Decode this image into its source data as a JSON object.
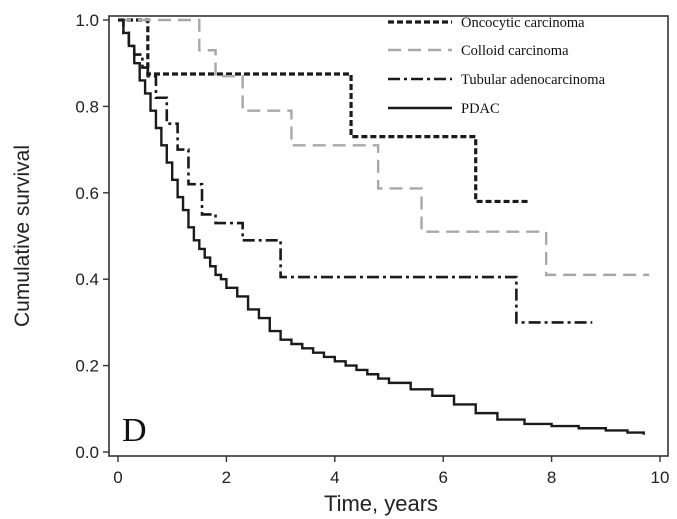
{
  "chart_data": {
    "type": "line",
    "subtype": "kaplan-meier step curves",
    "panel_label": "D",
    "xlabel": "Time, years",
    "ylabel": "Cumulative survival",
    "xlim": [
      0,
      10
    ],
    "ylim": [
      0,
      1.0
    ],
    "x_ticks": [
      "0",
      "2",
      "4",
      "6",
      "8",
      "10"
    ],
    "y_ticks": [
      "0.0",
      "0.2",
      "0.4",
      "0.6",
      "0.8",
      "1.0"
    ],
    "grid": false,
    "legend_position": "top-right",
    "series": [
      {
        "name": "Oncocytic carcinoma",
        "color": "#1a1a1a",
        "dash": "short-dash",
        "x": [
          0,
          0.55,
          4.3,
          6.6,
          7.6
        ],
        "y": [
          1.0,
          0.875,
          0.73,
          0.58,
          0.58
        ]
      },
      {
        "name": "Colloid carcinoma",
        "color": "#a8a8a8",
        "dash": "long-dash",
        "x": [
          0,
          1.5,
          1.8,
          2.3,
          3.2,
          4.8,
          5.6,
          7.9,
          9.8
        ],
        "y": [
          1.0,
          0.93,
          0.87,
          0.79,
          0.71,
          0.61,
          0.51,
          0.41,
          0.41
        ]
      },
      {
        "name": "Tubular adenocarcinoma",
        "color": "#1a1a1a",
        "dash": "dash-dot",
        "x": [
          0,
          0.1,
          0.2,
          0.3,
          0.45,
          0.55,
          0.7,
          0.9,
          1.1,
          1.3,
          1.55,
          1.8,
          2.3,
          3.0,
          7.35,
          8.75
        ],
        "y": [
          1.0,
          0.97,
          0.94,
          0.92,
          0.89,
          0.87,
          0.82,
          0.76,
          0.7,
          0.62,
          0.55,
          0.53,
          0.49,
          0.405,
          0.3,
          0.3
        ]
      },
      {
        "name": "PDAC",
        "color": "#1a1a1a",
        "dash": "solid",
        "x": [
          0,
          0.1,
          0.2,
          0.3,
          0.4,
          0.5,
          0.6,
          0.7,
          0.8,
          0.9,
          1.0,
          1.1,
          1.2,
          1.3,
          1.4,
          1.5,
          1.6,
          1.7,
          1.8,
          1.9,
          2.0,
          2.2,
          2.4,
          2.6,
          2.8,
          3.0,
          3.2,
          3.4,
          3.6,
          3.8,
          4.0,
          4.2,
          4.4,
          4.6,
          4.8,
          5.0,
          5.4,
          5.8,
          6.2,
          6.6,
          7.0,
          7.5,
          8.0,
          8.5,
          9.0,
          9.4,
          9.7
        ],
        "y": [
          1.0,
          0.97,
          0.94,
          0.9,
          0.86,
          0.83,
          0.79,
          0.75,
          0.71,
          0.67,
          0.63,
          0.59,
          0.56,
          0.52,
          0.49,
          0.47,
          0.45,
          0.43,
          0.41,
          0.4,
          0.38,
          0.36,
          0.33,
          0.31,
          0.28,
          0.26,
          0.25,
          0.24,
          0.23,
          0.22,
          0.21,
          0.2,
          0.19,
          0.18,
          0.17,
          0.16,
          0.145,
          0.13,
          0.11,
          0.09,
          0.075,
          0.065,
          0.06,
          0.055,
          0.05,
          0.045,
          0.04
        ]
      }
    ]
  }
}
